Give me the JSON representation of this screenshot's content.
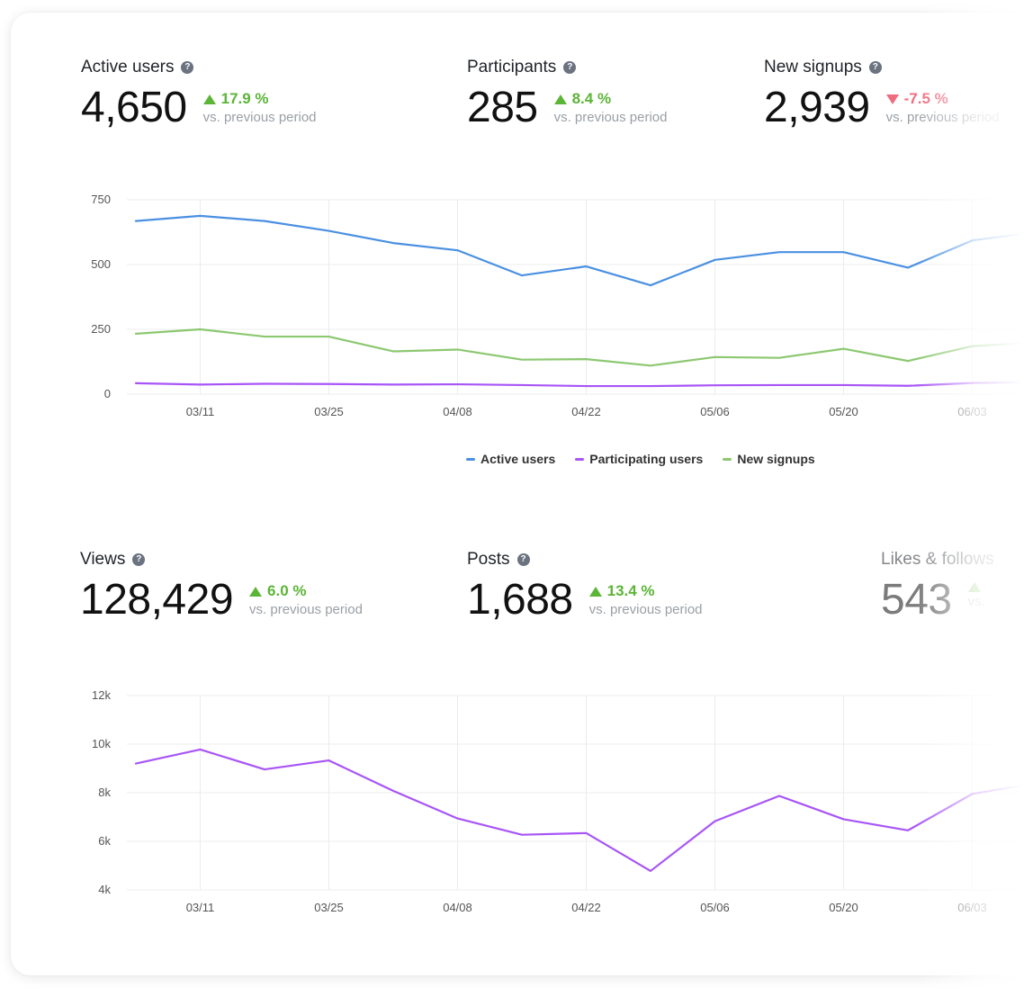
{
  "kpis_top": [
    {
      "label": "Active users",
      "value": "4,650",
      "delta": "17.9 %",
      "direction": "up",
      "sub": "vs. previous period"
    },
    {
      "label": "Participants",
      "value": "285",
      "delta": "8.4 %",
      "direction": "up",
      "sub": "vs. previous period"
    },
    {
      "label": "New signups",
      "value": "2,939",
      "delta": "-7.5 %",
      "direction": "down",
      "sub": "vs. previous period"
    }
  ],
  "kpis_bottom": [
    {
      "label": "Views",
      "value": "128,429",
      "delta": "6.0 %",
      "direction": "up",
      "sub": "vs. previous period"
    },
    {
      "label": "Posts",
      "value": "1,688",
      "delta": "13.4 %",
      "direction": "up",
      "sub": "vs. previous period"
    },
    {
      "label": "Likes & follows",
      "value": "543",
      "delta": "",
      "direction": "up",
      "sub": "vs."
    }
  ],
  "help_icon": "?",
  "colors": {
    "active": "#4a90e2",
    "participating": "#a855f7",
    "signups": "#8cc870",
    "views": "#a855f7",
    "up": "#5bb536",
    "down": "#ef6b7e"
  },
  "legend": [
    {
      "label": "Active users",
      "color": "#4a90e2"
    },
    {
      "label": "Participating users",
      "color": "#a855f7"
    },
    {
      "label": "New signups",
      "color": "#8cc870"
    }
  ],
  "chart_data": [
    {
      "type": "line",
      "x": [
        "03/04",
        "03/11",
        "03/18",
        "03/25",
        "04/01",
        "04/08",
        "04/15",
        "04/22",
        "04/29",
        "05/06",
        "05/13",
        "05/20",
        "05/27",
        "06/03",
        "06/10"
      ],
      "tick_labels": [
        "03/11",
        "03/25",
        "04/08",
        "04/22",
        "05/06",
        "05/20",
        "06/03"
      ],
      "yticks": [
        "750",
        "500",
        "250",
        "0"
      ],
      "ylim": [
        0,
        750
      ],
      "grid": true,
      "series": [
        {
          "name": "Active users",
          "color": "#4a90e2",
          "values": [
            668,
            688,
            668,
            630,
            583,
            555,
            458,
            493,
            420,
            518,
            548,
            548,
            488,
            593,
            625
          ]
        },
        {
          "name": "Participating users",
          "color": "#a855f7",
          "values": [
            42,
            37,
            40,
            39,
            37,
            38,
            35,
            31,
            31,
            34,
            35,
            35,
            32,
            43,
            46
          ]
        },
        {
          "name": "New signups",
          "color": "#8cc870",
          "values": [
            233,
            250,
            222,
            222,
            165,
            172,
            133,
            135,
            110,
            143,
            140,
            175,
            128,
            185,
            200
          ]
        }
      ]
    },
    {
      "type": "line",
      "x": [
        "03/04",
        "03/11",
        "03/18",
        "03/25",
        "04/01",
        "04/08",
        "04/15",
        "04/22",
        "04/29",
        "05/06",
        "05/13",
        "05/20",
        "05/27",
        "06/03",
        "06/10"
      ],
      "tick_labels": [
        "03/11",
        "03/25",
        "04/08",
        "04/22",
        "05/06",
        "05/20",
        "06/03"
      ],
      "yticks": [
        "12k",
        "10k",
        "8k",
        "6k",
        "4k"
      ],
      "ylim": [
        4000,
        12000
      ],
      "grid": true,
      "series": [
        {
          "name": "Views",
          "color": "#a855f7",
          "values": [
            9200,
            9780,
            8960,
            9330,
            8080,
            6940,
            6270,
            6340,
            4780,
            6830,
            7870,
            6910,
            6450,
            7950,
            8400
          ]
        }
      ]
    }
  ]
}
